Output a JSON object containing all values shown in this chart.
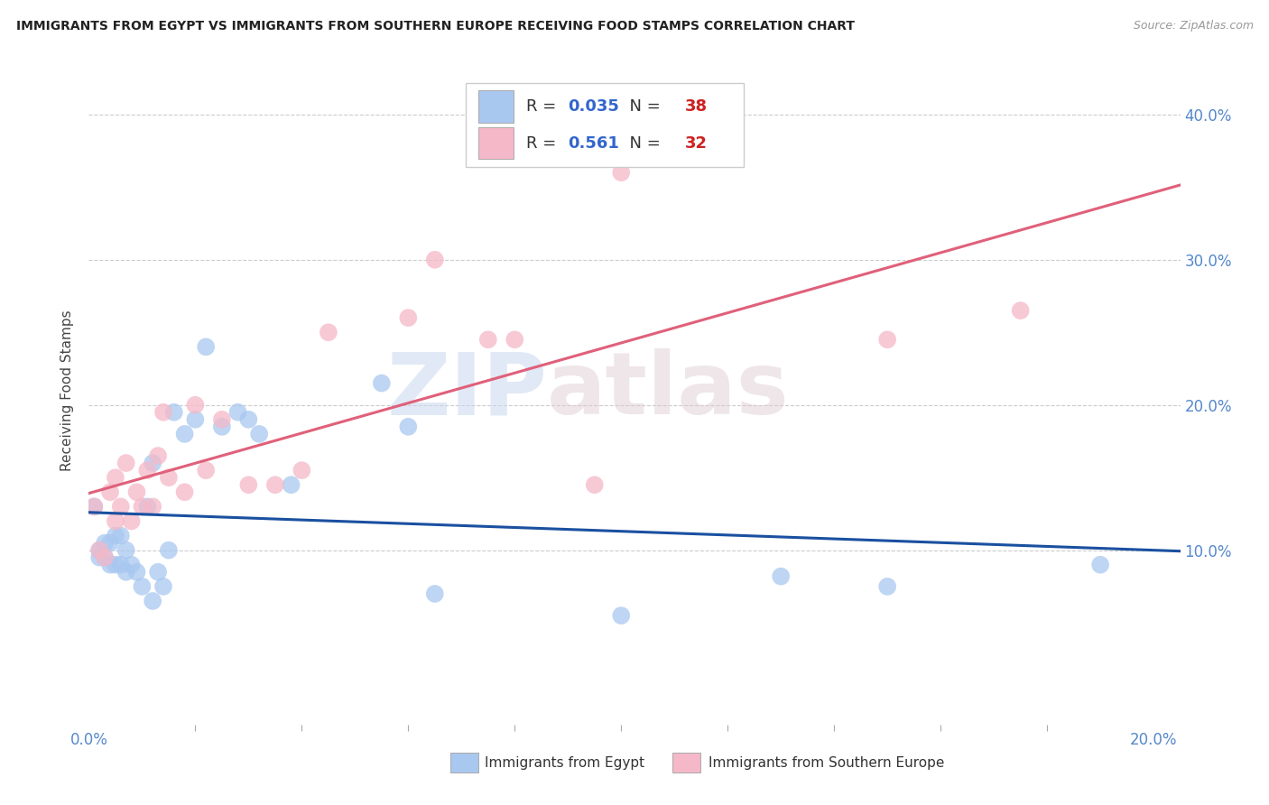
{
  "title": "IMMIGRANTS FROM EGYPT VS IMMIGRANTS FROM SOUTHERN EUROPE RECEIVING FOOD STAMPS CORRELATION CHART",
  "source": "Source: ZipAtlas.com",
  "ylabel": "Receiving Food Stamps",
  "ytick_vals": [
    0.1,
    0.2,
    0.3,
    0.4
  ],
  "ytick_labels": [
    "10.0%",
    "20.0%",
    "30.0%",
    "40.0%"
  ],
  "xlim": [
    0.0,
    0.205
  ],
  "ylim": [
    -0.02,
    0.44
  ],
  "color_egypt": "#a8c8f0",
  "color_s_europe": "#f5b8c8",
  "line_color_egypt": "#1a50a0",
  "line_color_s_europe": "#e0607a",
  "tick_color": "#5588cc",
  "egypt_x": [
    0.001,
    0.002,
    0.002,
    0.003,
    0.003,
    0.004,
    0.004,
    0.005,
    0.005,
    0.006,
    0.006,
    0.007,
    0.007,
    0.008,
    0.009,
    0.01,
    0.011,
    0.012,
    0.012,
    0.013,
    0.014,
    0.015,
    0.016,
    0.018,
    0.02,
    0.022,
    0.025,
    0.028,
    0.03,
    0.032,
    0.038,
    0.055,
    0.06,
    0.065,
    0.1,
    0.13,
    0.15,
    0.19
  ],
  "egypt_y": [
    0.13,
    0.095,
    0.1,
    0.095,
    0.105,
    0.09,
    0.105,
    0.09,
    0.11,
    0.09,
    0.11,
    0.085,
    0.1,
    0.09,
    0.085,
    0.075,
    0.13,
    0.16,
    0.065,
    0.085,
    0.075,
    0.1,
    0.195,
    0.18,
    0.19,
    0.24,
    0.185,
    0.195,
    0.19,
    0.18,
    0.145,
    0.215,
    0.185,
    0.07,
    0.055,
    0.082,
    0.075,
    0.09
  ],
  "s_europe_x": [
    0.001,
    0.002,
    0.003,
    0.004,
    0.005,
    0.005,
    0.006,
    0.007,
    0.008,
    0.009,
    0.01,
    0.011,
    0.012,
    0.013,
    0.014,
    0.015,
    0.018,
    0.02,
    0.022,
    0.025,
    0.03,
    0.035,
    0.04,
    0.045,
    0.06,
    0.065,
    0.075,
    0.08,
    0.095,
    0.1,
    0.15,
    0.175
  ],
  "s_europe_y": [
    0.13,
    0.1,
    0.095,
    0.14,
    0.12,
    0.15,
    0.13,
    0.16,
    0.12,
    0.14,
    0.13,
    0.155,
    0.13,
    0.165,
    0.195,
    0.15,
    0.14,
    0.2,
    0.155,
    0.19,
    0.145,
    0.145,
    0.155,
    0.25,
    0.26,
    0.3,
    0.245,
    0.245,
    0.145,
    0.36,
    0.245,
    0.265
  ],
  "watermark_zip": "ZIP",
  "watermark_atlas": "atlas",
  "leg_r1": "0.035",
  "leg_n1": "38",
  "leg_r2": "0.561",
  "leg_n2": "32",
  "bottom_label1": "Immigrants from Egypt",
  "bottom_label2": "Immigrants from Southern Europe"
}
